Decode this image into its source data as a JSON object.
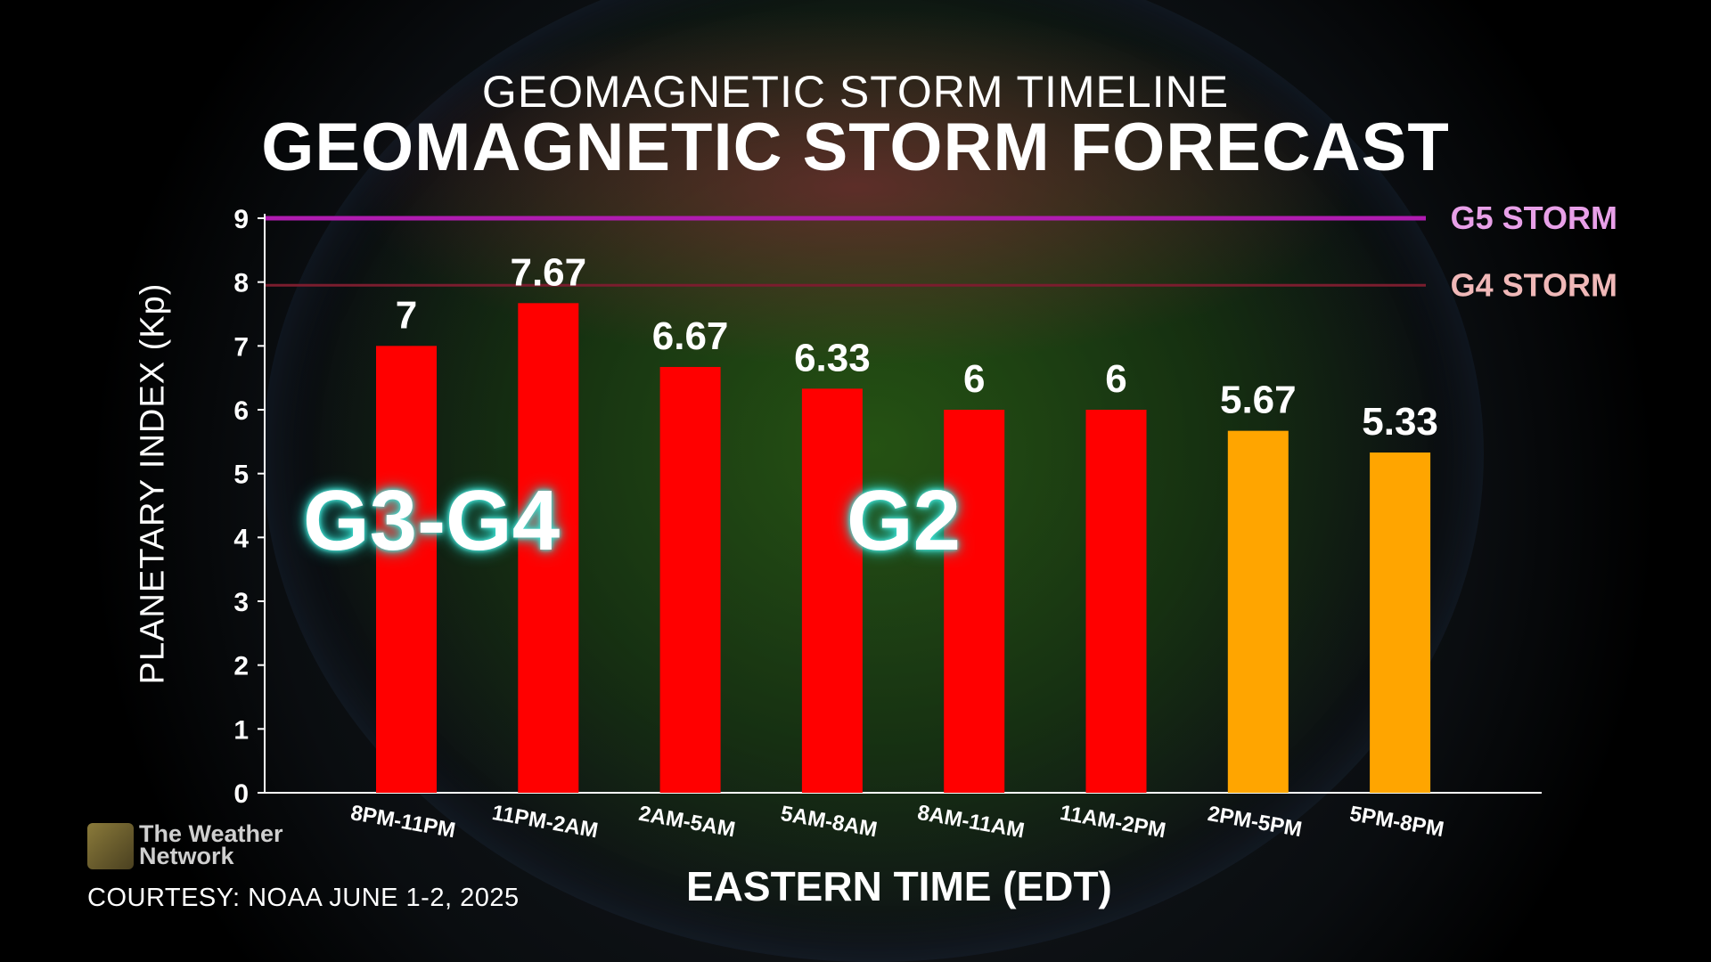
{
  "header": {
    "subtitle": "GEOMAGNETIC STORM TIMELINE",
    "title": "GEOMAGNETIC STORM FORECAST"
  },
  "overlays": {
    "group1": "G3-G4",
    "group2": "G2"
  },
  "brand": {
    "logo_line1": "The Weather",
    "logo_line2": "Network",
    "courtesy": "COURTESY: NOAA JUNE 1-2, 2025"
  },
  "chart_data": {
    "type": "bar",
    "title": "GEOMAGNETIC STORM FORECAST",
    "subtitle": "GEOMAGNETIC STORM TIMELINE",
    "xlabel": "EASTERN TIME (EDT)",
    "ylabel": "PLANETARY INDEX (Kp)",
    "ylim": [
      0,
      9
    ],
    "yticks": [
      0,
      1,
      2,
      3,
      4,
      5,
      6,
      7,
      8,
      9
    ],
    "categories": [
      "8PM-11PM",
      "11PM-2AM",
      "2AM-5AM",
      "5AM-8AM",
      "8AM-11AM",
      "11AM-2PM",
      "2PM-5PM",
      "5PM-8PM"
    ],
    "values": [
      7,
      7.67,
      6.67,
      6.33,
      6,
      6,
      5.67,
      5.33
    ],
    "value_labels": [
      "7",
      "7.67",
      "6.67",
      "6.33",
      "6",
      "6",
      "5.67",
      "5.33"
    ],
    "bar_colors": [
      "#ff0000",
      "#ff0000",
      "#ff0000",
      "#ff0000",
      "#ff0000",
      "#ff0000",
      "#ffa500",
      "#ffa500"
    ],
    "thresholds": [
      {
        "label": "G5 STORM",
        "value": 9,
        "color": "#b01cb0",
        "text_color": "#e8a0e8"
      },
      {
        "label": "G4 STORM",
        "value": 7.95,
        "color": "#7a1d2e",
        "text_color": "#f0b8b8"
      }
    ],
    "grid": false
  }
}
